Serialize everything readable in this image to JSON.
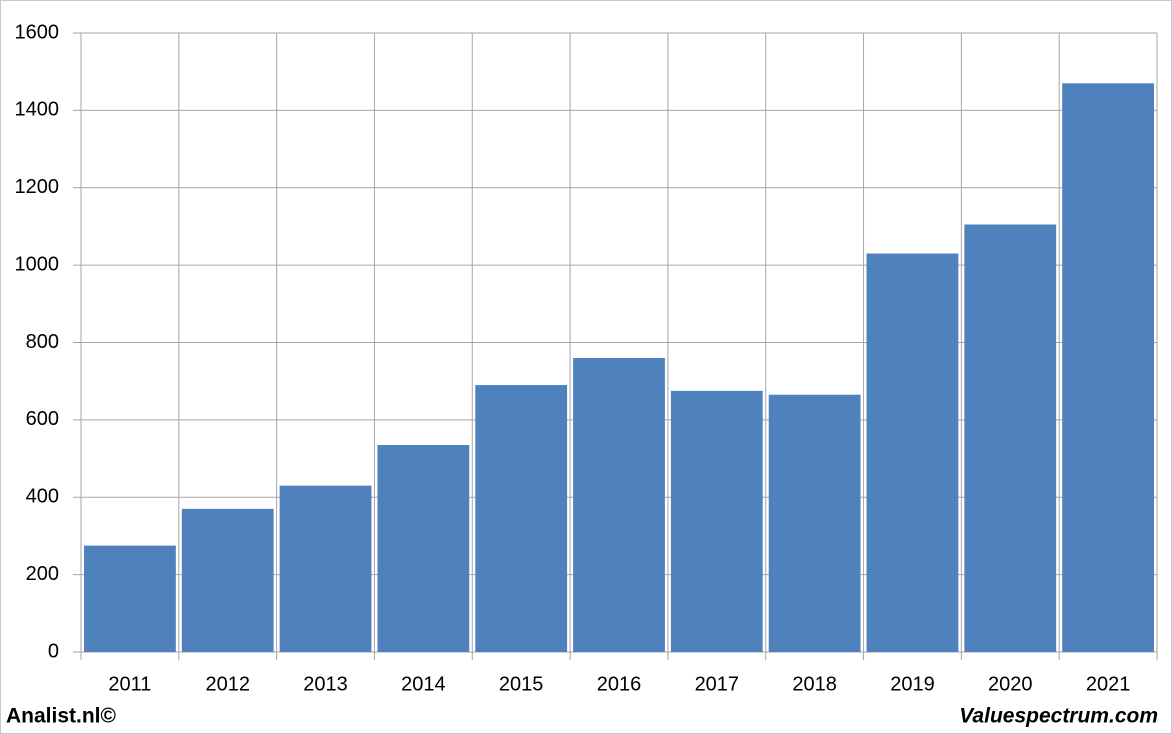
{
  "chart_data": {
    "type": "bar",
    "categories": [
      "2011",
      "2012",
      "2013",
      "2014",
      "2015",
      "2016",
      "2017",
      "2018",
      "2019",
      "2020",
      "2021"
    ],
    "values": [
      275,
      370,
      430,
      535,
      690,
      760,
      675,
      665,
      1030,
      1105,
      1470
    ],
    "color": "#4f81bd",
    "ylim": [
      0,
      1600
    ],
    "yticks": [
      0,
      200,
      400,
      600,
      800,
      1000,
      1200,
      1400,
      1600
    ],
    "grid": true,
    "footer_left": "Analist.nl©",
    "footer_right": "Valuespectrum.com"
  }
}
